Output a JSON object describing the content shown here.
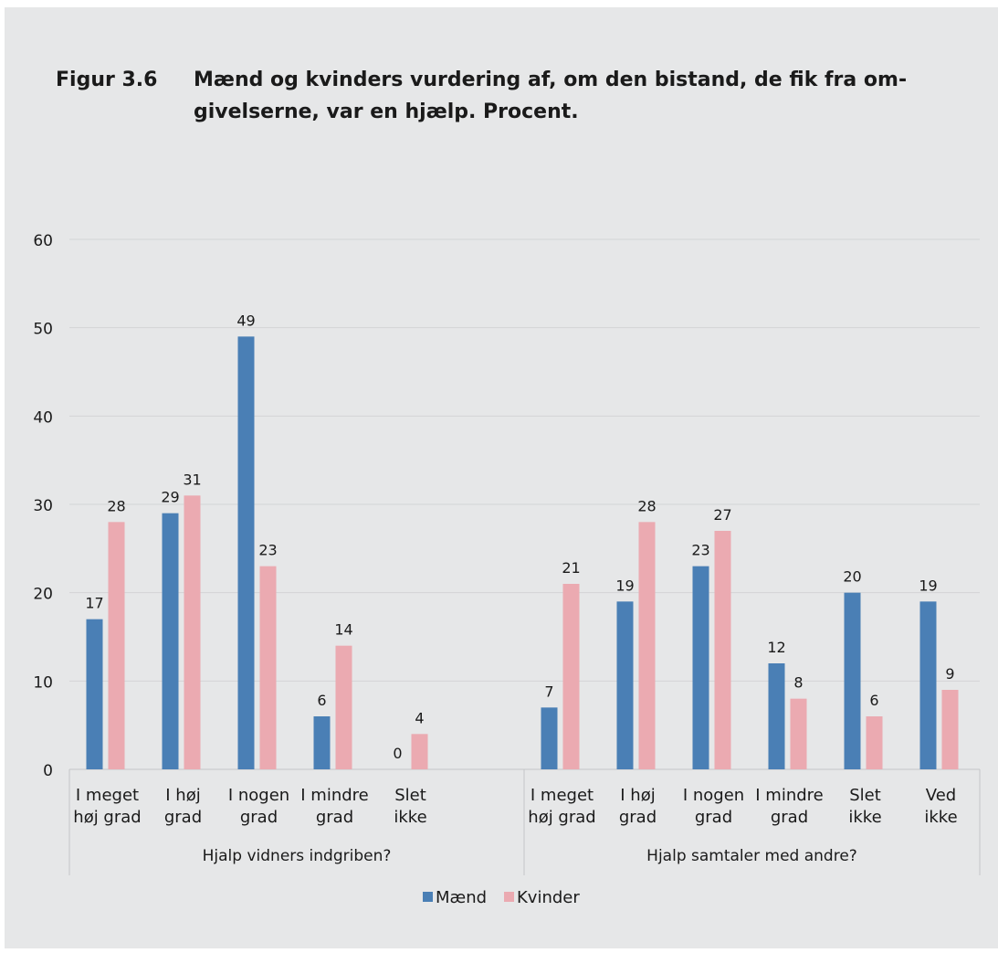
{
  "figure": {
    "label": "Figur 3.6",
    "title": "Mænd og kvinders vurdering af, om den bistand, de fik fra om-givelserne, var en hjælp. Procent."
  },
  "chart_data": {
    "type": "bar",
    "ylim": [
      0,
      60
    ],
    "yticks": [
      0,
      10,
      20,
      30,
      40,
      50,
      60
    ],
    "grid": true,
    "legend": "bottom",
    "groups": [
      {
        "label": "Hjalp vidners indgriben?",
        "categories": [
          [
            "I meget",
            "høj grad"
          ],
          [
            "I høj",
            "grad"
          ],
          [
            "I nogen",
            "grad"
          ],
          [
            "I mindre",
            "grad"
          ],
          [
            "Slet",
            "ikke"
          ]
        ],
        "series": [
          {
            "name": "Mænd",
            "values": [
              17,
              29,
              49,
              6,
              0
            ]
          },
          {
            "name": "Kvinder",
            "values": [
              28,
              31,
              23,
              14,
              4
            ]
          }
        ]
      },
      {
        "label": "Hjalp samtaler med andre?",
        "categories": [
          [
            "I meget",
            "høj grad"
          ],
          [
            "I høj",
            "grad"
          ],
          [
            "I nogen",
            "grad"
          ],
          [
            "I mindre",
            "grad"
          ],
          [
            "Slet",
            "ikke"
          ],
          [
            "Ved",
            "ikke"
          ]
        ],
        "series": [
          {
            "name": "Mænd",
            "values": [
              7,
              19,
              23,
              12,
              20,
              19
            ]
          },
          {
            "name": "Kvinder",
            "values": [
              21,
              28,
              27,
              8,
              6,
              9
            ]
          }
        ]
      }
    ],
    "colors": {
      "Mænd": "#4a7fb5",
      "Kvinder": "#ebaab1"
    }
  }
}
